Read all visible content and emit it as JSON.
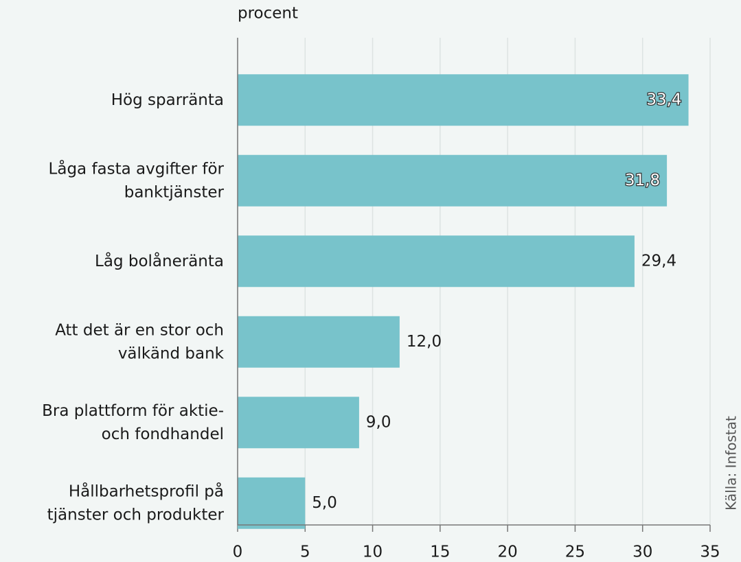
{
  "chart_data": {
    "type": "barh",
    "x_label": "procent",
    "source": "Källa: Infostat",
    "categories": [
      "Hög sparränta",
      "Låga fasta avgifter för\nbanktjänster",
      "Låg bolåneränta",
      "Att det är en stor och\nvälkänd bank",
      "Bra plattform för aktie-\noch fondhandel",
      "Hållbarhetsprofil på\ntjänster och produkter"
    ],
    "values": [
      33.4,
      31.8,
      29.4,
      12.0,
      9.0,
      5.0
    ],
    "value_labels": [
      "33,4",
      "31,8",
      "29,4",
      "12,0",
      "9,0",
      "5,0"
    ],
    "color": "#78c3cb",
    "xlim": [
      0,
      35
    ],
    "xticks": [
      0,
      5,
      10,
      15,
      20,
      25,
      30,
      35
    ],
    "grid": true
  }
}
